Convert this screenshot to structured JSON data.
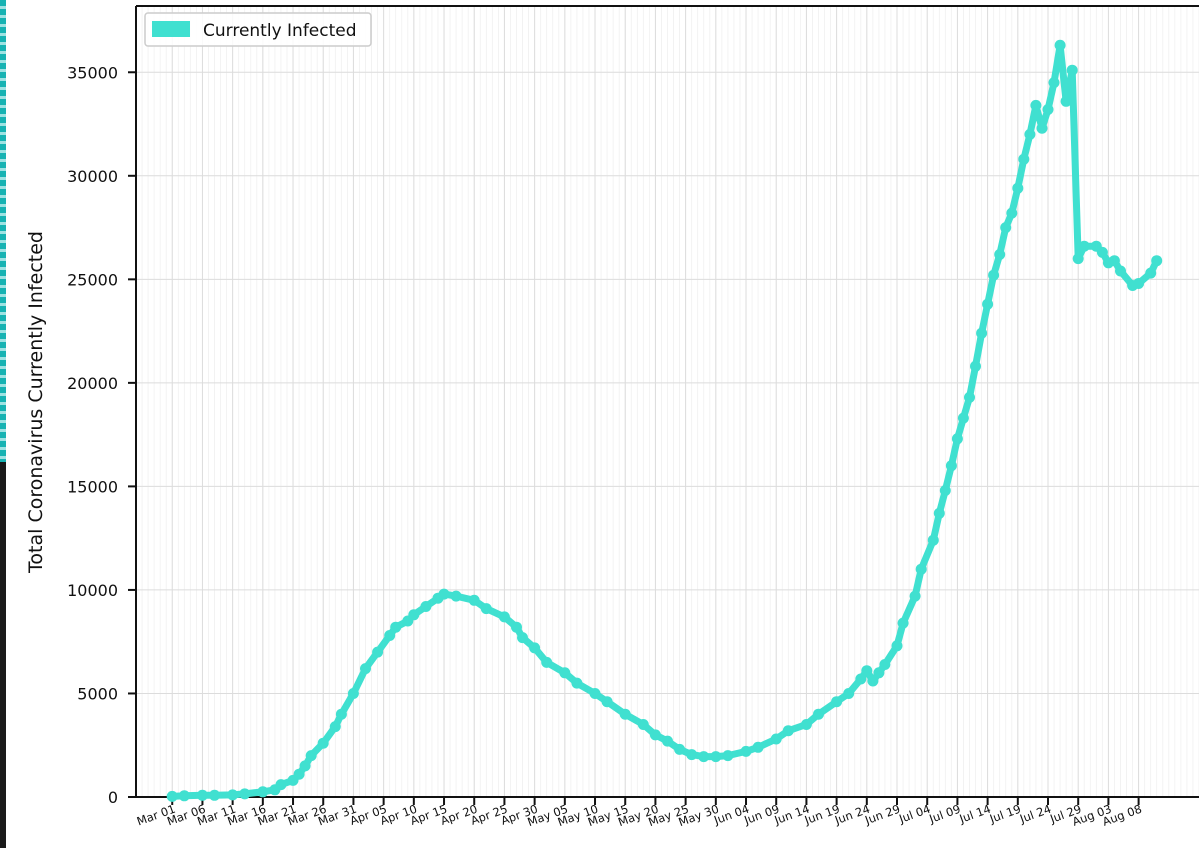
{
  "chart_data": {
    "type": "line",
    "ylabel": "Total Coronavirus Currently Infected",
    "legend": {
      "label": "Currently Infected",
      "placement": "top-left"
    },
    "color": "#40e0d0",
    "grid": true,
    "ylim": [
      0,
      38200
    ],
    "xlim": [
      "2020-02-24",
      "2020-08-18"
    ],
    "yticks": [
      0,
      5000,
      10000,
      15000,
      20000,
      25000,
      30000,
      35000
    ],
    "xticks": [
      {
        "date": "2020-03-01",
        "label": "Mar 01"
      },
      {
        "date": "2020-03-06",
        "label": "Mar 06"
      },
      {
        "date": "2020-03-11",
        "label": "Mar 11"
      },
      {
        "date": "2020-03-16",
        "label": "Mar 16"
      },
      {
        "date": "2020-03-21",
        "label": "Mar 21"
      },
      {
        "date": "2020-03-26",
        "label": "Mar 26"
      },
      {
        "date": "2020-03-31",
        "label": "Mar 31"
      },
      {
        "date": "2020-04-05",
        "label": "Apr 05"
      },
      {
        "date": "2020-04-10",
        "label": "Apr 10"
      },
      {
        "date": "2020-04-15",
        "label": "Apr 15"
      },
      {
        "date": "2020-04-20",
        "label": "Apr 20"
      },
      {
        "date": "2020-04-25",
        "label": "Apr 25"
      },
      {
        "date": "2020-04-30",
        "label": "Apr 30"
      },
      {
        "date": "2020-05-05",
        "label": "May 05"
      },
      {
        "date": "2020-05-10",
        "label": "May 10"
      },
      {
        "date": "2020-05-15",
        "label": "May 15"
      },
      {
        "date": "2020-05-20",
        "label": "May 20"
      },
      {
        "date": "2020-05-25",
        "label": "May 25"
      },
      {
        "date": "2020-05-30",
        "label": "May 30"
      },
      {
        "date": "2020-06-04",
        "label": "Jun 04"
      },
      {
        "date": "2020-06-09",
        "label": "Jun 09"
      },
      {
        "date": "2020-06-14",
        "label": "Jun 14"
      },
      {
        "date": "2020-06-19",
        "label": "Jun 19"
      },
      {
        "date": "2020-06-24",
        "label": "Jun 24"
      },
      {
        "date": "2020-06-29",
        "label": "Jun 29"
      },
      {
        "date": "2020-07-04",
        "label": "Jul 04"
      },
      {
        "date": "2020-07-09",
        "label": "Jul 09"
      },
      {
        "date": "2020-07-14",
        "label": "Jul 14"
      },
      {
        "date": "2020-07-19",
        "label": "Jul 19"
      },
      {
        "date": "2020-07-24",
        "label": "Jul 24"
      },
      {
        "date": "2020-07-29",
        "label": "Jul 29"
      },
      {
        "date": "2020-08-03",
        "label": "Aug 03"
      },
      {
        "date": "2020-08-08",
        "label": "Aug 08"
      }
    ],
    "series": [
      {
        "name": "Currently Infected",
        "points": [
          [
            "2020-03-01",
            30
          ],
          [
            "2020-03-03",
            60
          ],
          [
            "2020-03-06",
            80
          ],
          [
            "2020-03-08",
            80
          ],
          [
            "2020-03-11",
            100
          ],
          [
            "2020-03-13",
            150
          ],
          [
            "2020-03-16",
            250
          ],
          [
            "2020-03-18",
            350
          ],
          [
            "2020-03-19",
            600
          ],
          [
            "2020-03-21",
            800
          ],
          [
            "2020-03-22",
            1100
          ],
          [
            "2020-03-23",
            1500
          ],
          [
            "2020-03-24",
            2000
          ],
          [
            "2020-03-26",
            2600
          ],
          [
            "2020-03-28",
            3400
          ],
          [
            "2020-03-29",
            4000
          ],
          [
            "2020-03-31",
            5000
          ],
          [
            "2020-04-02",
            6200
          ],
          [
            "2020-04-04",
            7000
          ],
          [
            "2020-04-06",
            7800
          ],
          [
            "2020-04-07",
            8200
          ],
          [
            "2020-04-09",
            8500
          ],
          [
            "2020-04-10",
            8800
          ],
          [
            "2020-04-12",
            9200
          ],
          [
            "2020-04-14",
            9600
          ],
          [
            "2020-04-15",
            9800
          ],
          [
            "2020-04-17",
            9700
          ],
          [
            "2020-04-20",
            9500
          ],
          [
            "2020-04-22",
            9100
          ],
          [
            "2020-04-25",
            8700
          ],
          [
            "2020-04-27",
            8200
          ],
          [
            "2020-04-28",
            7700
          ],
          [
            "2020-04-30",
            7200
          ],
          [
            "2020-05-02",
            6500
          ],
          [
            "2020-05-05",
            6000
          ],
          [
            "2020-05-07",
            5500
          ],
          [
            "2020-05-10",
            5000
          ],
          [
            "2020-05-12",
            4600
          ],
          [
            "2020-05-15",
            4000
          ],
          [
            "2020-05-18",
            3500
          ],
          [
            "2020-05-20",
            3000
          ],
          [
            "2020-05-22",
            2700
          ],
          [
            "2020-05-24",
            2300
          ],
          [
            "2020-05-26",
            2050
          ],
          [
            "2020-05-28",
            1950
          ],
          [
            "2020-05-30",
            1950
          ],
          [
            "2020-06-01",
            2000
          ],
          [
            "2020-06-04",
            2200
          ],
          [
            "2020-06-06",
            2400
          ],
          [
            "2020-06-09",
            2800
          ],
          [
            "2020-06-11",
            3200
          ],
          [
            "2020-06-14",
            3500
          ],
          [
            "2020-06-16",
            4000
          ],
          [
            "2020-06-19",
            4600
          ],
          [
            "2020-06-21",
            5000
          ],
          [
            "2020-06-23",
            5700
          ],
          [
            "2020-06-24",
            6100
          ],
          [
            "2020-06-25",
            5600
          ],
          [
            "2020-06-26",
            6000
          ],
          [
            "2020-06-27",
            6400
          ],
          [
            "2020-06-29",
            7300
          ],
          [
            "2020-06-30",
            8400
          ],
          [
            "2020-07-02",
            9700
          ],
          [
            "2020-07-03",
            11000
          ],
          [
            "2020-07-05",
            12400
          ],
          [
            "2020-07-06",
            13700
          ],
          [
            "2020-07-07",
            14800
          ],
          [
            "2020-07-08",
            16000
          ],
          [
            "2020-07-09",
            17300
          ],
          [
            "2020-07-10",
            18300
          ],
          [
            "2020-07-11",
            19300
          ],
          [
            "2020-07-12",
            20800
          ],
          [
            "2020-07-13",
            22400
          ],
          [
            "2020-07-14",
            23800
          ],
          [
            "2020-07-15",
            25200
          ],
          [
            "2020-07-16",
            26200
          ],
          [
            "2020-07-17",
            27500
          ],
          [
            "2020-07-18",
            28200
          ],
          [
            "2020-07-19",
            29400
          ],
          [
            "2020-07-20",
            30800
          ],
          [
            "2020-07-21",
            32000
          ],
          [
            "2020-07-22",
            33400
          ],
          [
            "2020-07-23",
            32300
          ],
          [
            "2020-07-24",
            33200
          ],
          [
            "2020-07-25",
            34500
          ],
          [
            "2020-07-26",
            36300
          ],
          [
            "2020-07-27",
            33600
          ],
          [
            "2020-07-28",
            35100
          ],
          [
            "2020-07-29",
            26000
          ],
          [
            "2020-07-30",
            26600
          ],
          [
            "2020-08-01",
            26600
          ],
          [
            "2020-08-02",
            26300
          ],
          [
            "2020-08-03",
            25800
          ],
          [
            "2020-08-04",
            25900
          ],
          [
            "2020-08-05",
            25400
          ],
          [
            "2020-08-07",
            24700
          ],
          [
            "2020-08-08",
            24800
          ],
          [
            "2020-08-10",
            25300
          ],
          [
            "2020-08-11",
            25900
          ]
        ]
      }
    ]
  }
}
